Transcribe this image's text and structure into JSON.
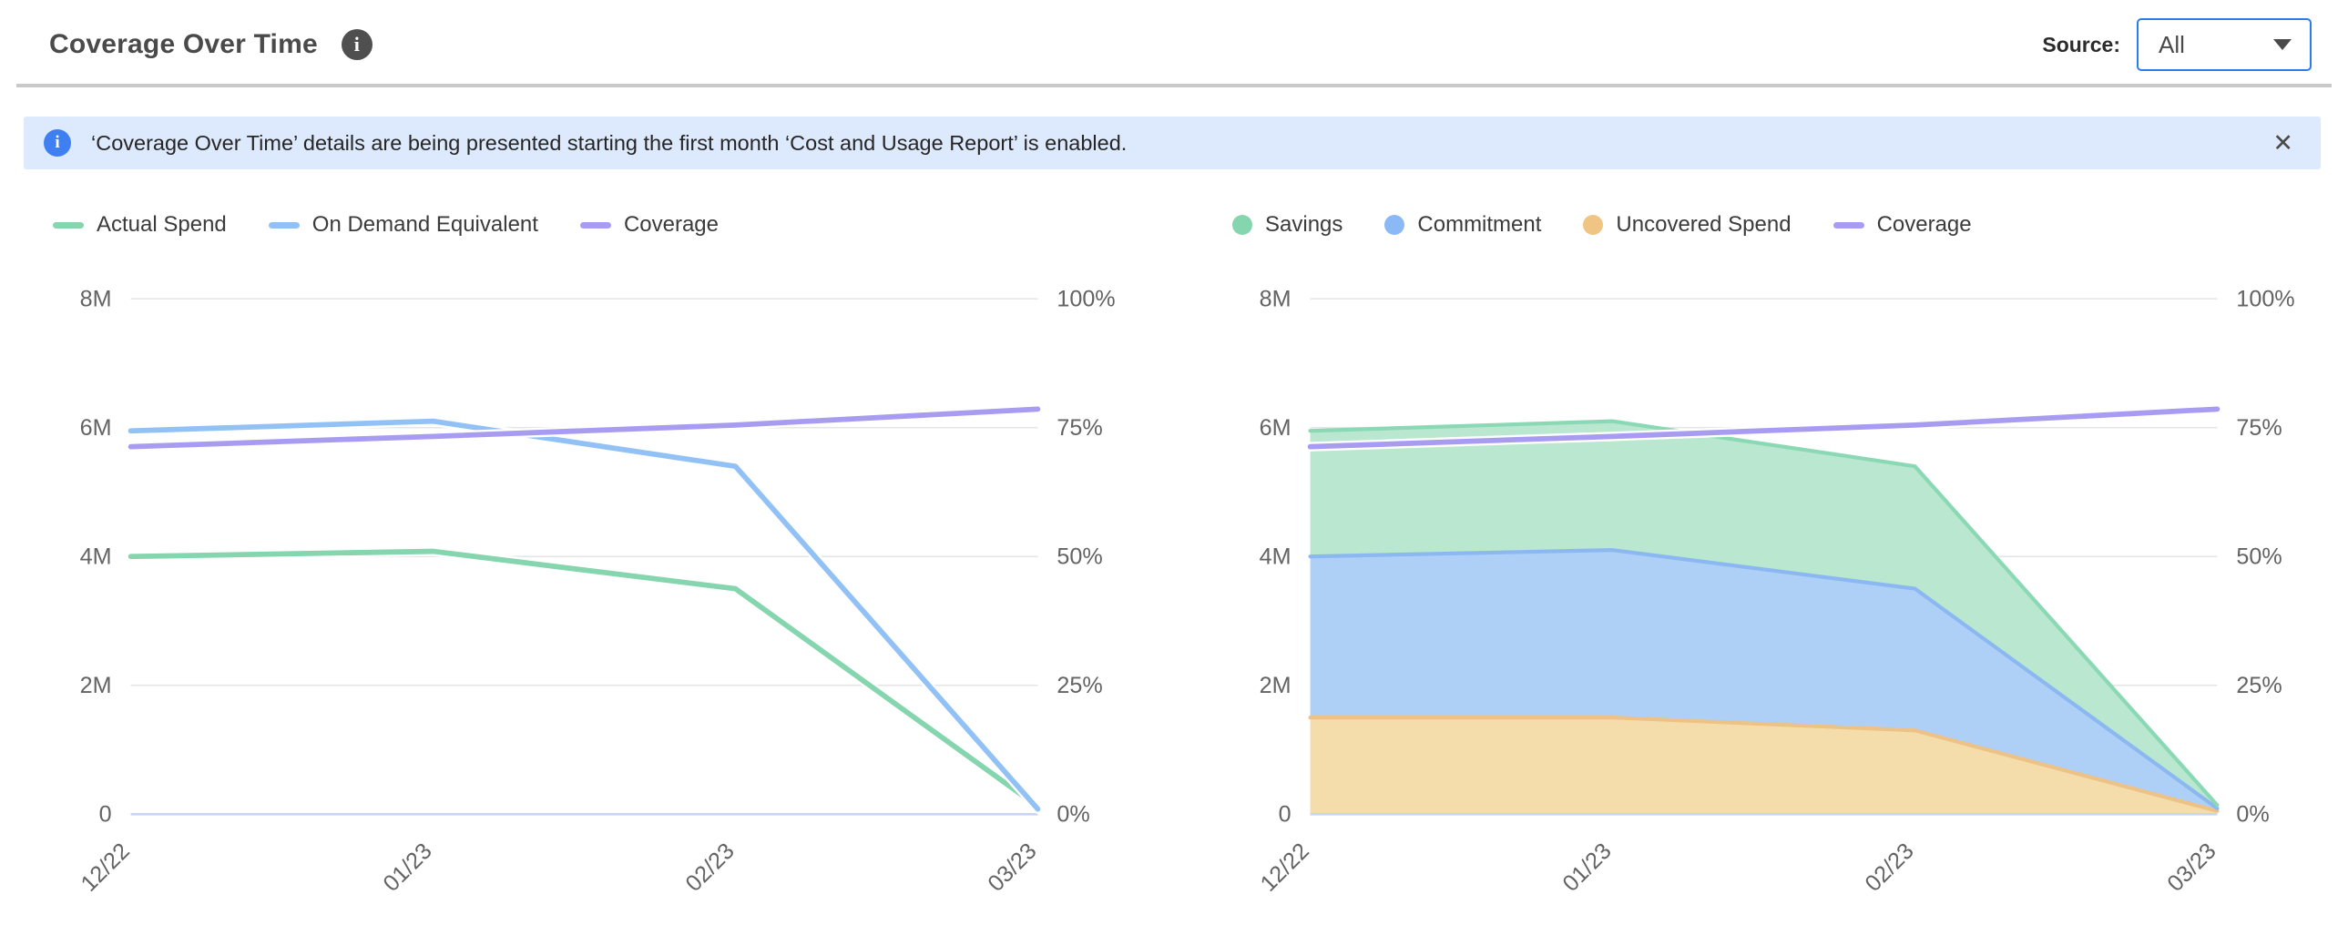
{
  "header": {
    "title": "Coverage Over Time",
    "source_label": "Source:",
    "source_value": "All"
  },
  "icons": {
    "info_glyph": "i",
    "close_glyph": "✕",
    "dropdown_caret": "chevron-down"
  },
  "banner": {
    "text": "‘Coverage Over Time’ details are being presented starting the first month ‘Cost and Usage Report’ is enabled.",
    "background": "#dde9fc",
    "icon_color": "#3e80f2"
  },
  "colors": {
    "accent_blue": "#2b7cf0",
    "divider": "#c9c9c9",
    "grid_line": "#e6e6e6",
    "zero_axis_line": "#c9d4f1",
    "axis_label": "#636363",
    "title": "#4a4a4a"
  },
  "chart_data": [
    {
      "type": "line",
      "name": "spend-vs-on-demand",
      "categories": [
        "12/22",
        "01/23",
        "02/23",
        "03/23"
      ],
      "series": [
        {
          "name": "Actual Spend",
          "style": "line",
          "axis": "left",
          "unit": "M",
          "color": "#85d6ae",
          "values": [
            4.0,
            4.08,
            3.5,
            0.12
          ]
        },
        {
          "name": "On Demand Equivalent",
          "style": "line",
          "axis": "left",
          "unit": "M",
          "color": "#92c1f6",
          "values": [
            5.95,
            6.1,
            5.4,
            0.08
          ]
        },
        {
          "name": "Coverage",
          "style": "line",
          "axis": "right",
          "unit": "%",
          "color": "#a89bf2",
          "values": [
            71.3,
            73.3,
            75.5,
            78.6
          ]
        }
      ],
      "y_left": {
        "min": 0,
        "max": 8,
        "unit": "M",
        "ticks": [
          "0",
          "2M",
          "4M",
          "6M",
          "8M"
        ]
      },
      "y_right": {
        "min": 0,
        "max": 100,
        "unit": "%",
        "ticks": [
          "0%",
          "25%",
          "50%",
          "75%",
          "100%"
        ]
      },
      "grid": true,
      "legend_position": "top-left",
      "legend": [
        {
          "label": "Actual Spend",
          "swatch": "line",
          "color": "#85d6ae"
        },
        {
          "label": "On Demand Equivalent",
          "swatch": "line",
          "color": "#92c1f6"
        },
        {
          "label": "Coverage",
          "swatch": "line",
          "color": "#a89bf2"
        }
      ]
    },
    {
      "type": "area",
      "name": "coverage-breakdown",
      "stacked": true,
      "categories": [
        "12/22",
        "01/23",
        "02/23",
        "03/23"
      ],
      "series": [
        {
          "name": "Uncovered Spend",
          "style": "area",
          "axis": "left",
          "unit": "M",
          "fill": "#f5dcab",
          "stroke": "#edc286",
          "values": [
            1.5,
            1.5,
            1.3,
            0.05
          ]
        },
        {
          "name": "Commitment",
          "style": "area",
          "axis": "left",
          "unit": "M",
          "fill": "#aed0f6",
          "stroke": "#8cb8f2",
          "values": [
            2.5,
            2.6,
            2.2,
            0.04
          ]
        },
        {
          "name": "Savings",
          "style": "area",
          "axis": "left",
          "unit": "M",
          "fill": "#b9e7cf",
          "stroke": "#8bd9b4",
          "values": [
            1.95,
            2.0,
            1.9,
            0.05
          ]
        },
        {
          "name": "Coverage",
          "style": "line",
          "axis": "right",
          "unit": "%",
          "color": "#a89bf2",
          "values": [
            71.3,
            73.3,
            75.5,
            78.6
          ]
        }
      ],
      "y_left": {
        "min": 0,
        "max": 8,
        "unit": "M",
        "ticks": [
          "0",
          "2M",
          "4M",
          "6M",
          "8M"
        ]
      },
      "y_right": {
        "min": 0,
        "max": 100,
        "unit": "%",
        "ticks": [
          "0%",
          "25%",
          "50%",
          "75%",
          "100%"
        ]
      },
      "grid": true,
      "legend_position": "top-left",
      "legend": [
        {
          "label": "Savings",
          "swatch": "circle",
          "color": "#85d6ae"
        },
        {
          "label": "Commitment",
          "swatch": "circle",
          "color": "#8ab9f5"
        },
        {
          "label": "Uncovered Spend",
          "swatch": "circle",
          "color": "#f0c583"
        },
        {
          "label": "Coverage",
          "swatch": "line",
          "color": "#a89bf2"
        }
      ]
    }
  ]
}
